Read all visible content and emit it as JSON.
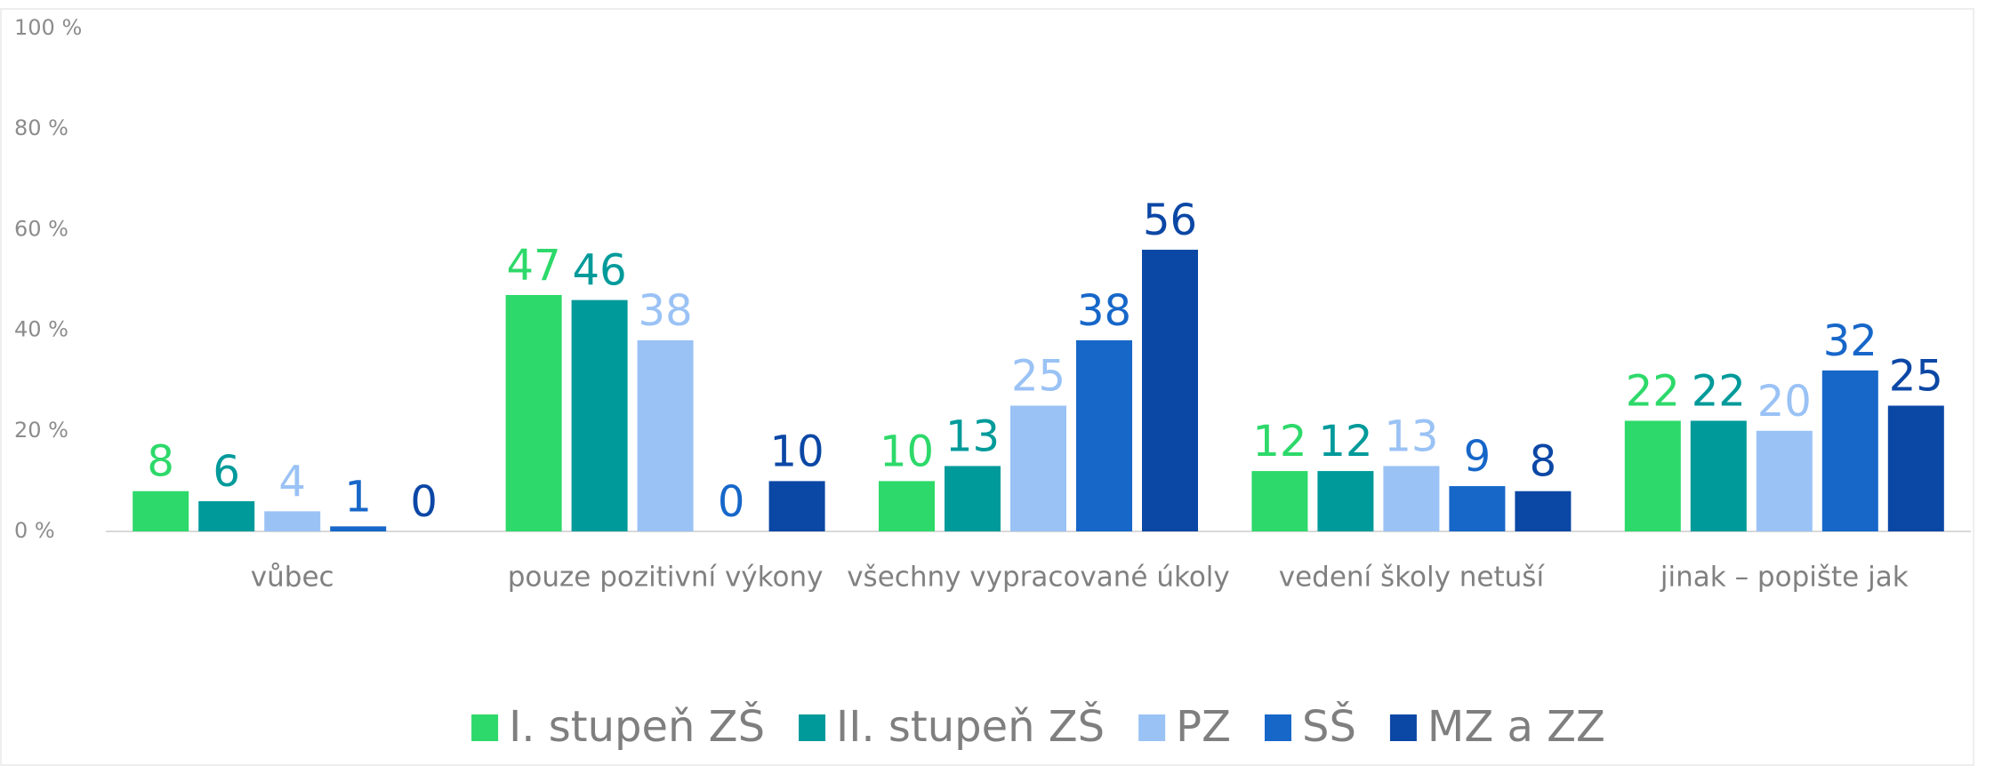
{
  "chart_data": {
    "type": "bar",
    "categories": [
      "vůbec",
      "pouze pozitivní výkony",
      "všechny vypracované úkoly",
      "vedení školy netuší",
      "jinak – popište jak"
    ],
    "series": [
      {
        "name": "I. stupeň ZŠ",
        "color": "#2dd96a",
        "values": [
          8,
          47,
          10,
          12,
          22
        ]
      },
      {
        "name": "II. stupeň ZŠ",
        "color": "#009a9a",
        "values": [
          6,
          46,
          13,
          12,
          22
        ]
      },
      {
        "name": "PZ",
        "color": "#9ac2f5",
        "values": [
          4,
          38,
          25,
          13,
          20
        ]
      },
      {
        "name": "SŠ",
        "color": "#1767c9",
        "values": [
          1,
          0,
          38,
          9,
          32
        ]
      },
      {
        "name": "MZ a ZZ",
        "color": "#0b47a5",
        "values": [
          0,
          10,
          56,
          8,
          25
        ]
      }
    ],
    "ylim": [
      0,
      100
    ],
    "yticks": [
      {
        "value": 0,
        "label": "0 %"
      },
      {
        "value": 20,
        "label": "20 %"
      },
      {
        "value": 40,
        "label": "40 %"
      },
      {
        "value": 60,
        "label": "60 %"
      },
      {
        "value": 80,
        "label": "80 %"
      },
      {
        "value": 100,
        "label": "100 %"
      }
    ],
    "grid": false,
    "legend": "bottom"
  }
}
